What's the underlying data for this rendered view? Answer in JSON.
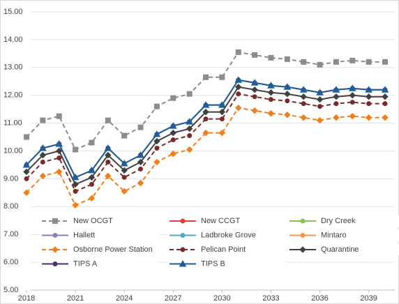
{
  "chart_data": {
    "type": "line",
    "x": [
      2018,
      2019,
      2020,
      2021,
      2022,
      2023,
      2024,
      2025,
      2026,
      2027,
      2028,
      2029,
      2030,
      2031,
      2032,
      2033,
      2034,
      2035,
      2036,
      2037,
      2038,
      2039,
      2040
    ],
    "xlim": [
      2018,
      2040
    ],
    "xticks": [
      2018,
      2021,
      2024,
      2027,
      2030,
      2033,
      2036,
      2039
    ],
    "ylim": [
      5,
      15
    ],
    "yticks": [
      {
        "value": 5,
        "label": "5.00"
      },
      {
        "value": 6,
        "label": "6.00"
      },
      {
        "value": 7,
        "label": "7.00"
      },
      {
        "value": 8,
        "label": "8.00"
      },
      {
        "value": 9,
        "label": "9.00"
      },
      {
        "value": 10,
        "label": "10.00"
      },
      {
        "value": 11,
        "label": "11.00"
      },
      {
        "value": 12,
        "label": "12.00"
      },
      {
        "value": 13,
        "label": "13.00"
      },
      {
        "value": 14,
        "label": "14.00"
      },
      {
        "value": 15,
        "label": "15.00"
      }
    ],
    "grid": true,
    "legend": "bottom",
    "series": [
      {
        "name": "New OCGT",
        "color": "#8c8c8c",
        "dash": true,
        "marker": "square",
        "values": [
          10.5,
          11.1,
          11.25,
          10.05,
          10.3,
          11.1,
          10.55,
          10.85,
          11.6,
          11.9,
          12.05,
          12.65,
          12.65,
          13.55,
          13.45,
          13.35,
          13.3,
          13.2,
          13.1,
          13.2,
          13.25,
          13.2,
          13.2
        ]
      },
      {
        "name": "New CCGT",
        "color": "#e0403a",
        "dash": false,
        "marker": "circle",
        "values": [
          null,
          null,
          null,
          null,
          null,
          null,
          null,
          null,
          null,
          null,
          null,
          null,
          null,
          null,
          null,
          null,
          null,
          null,
          null,
          null,
          null,
          null,
          null
        ]
      },
      {
        "name": "Dry Creek",
        "color": "#8cc152",
        "dash": false,
        "marker": "circle",
        "values": [
          null,
          null,
          null,
          null,
          null,
          null,
          null,
          null,
          null,
          null,
          null,
          null,
          null,
          null,
          null,
          null,
          null,
          null,
          null,
          null,
          null,
          null,
          null
        ]
      },
      {
        "name": "Hallett",
        "color": "#8e7cc3",
        "dash": false,
        "marker": "circle",
        "values": [
          null,
          null,
          null,
          null,
          null,
          null,
          null,
          null,
          null,
          null,
          null,
          null,
          null,
          null,
          null,
          null,
          null,
          null,
          null,
          null,
          null,
          null,
          null
        ]
      },
      {
        "name": "Ladbroke Grove",
        "color": "#4bacc6",
        "dash": false,
        "marker": "circle",
        "values": [
          null,
          null,
          null,
          null,
          null,
          null,
          null,
          null,
          null,
          null,
          null,
          null,
          null,
          null,
          null,
          null,
          null,
          null,
          null,
          null,
          null,
          null,
          null
        ]
      },
      {
        "name": "Mintaro",
        "color": "#f79646",
        "dash": false,
        "marker": "circle",
        "values": [
          null,
          null,
          null,
          null,
          null,
          null,
          null,
          null,
          null,
          null,
          null,
          null,
          null,
          null,
          null,
          null,
          null,
          null,
          null,
          null,
          null,
          null,
          null
        ]
      },
      {
        "name": "Osborne Power Station",
        "color": "#f07f1c",
        "dash": true,
        "marker": "diamond",
        "values": [
          8.5,
          9.1,
          9.25,
          8.05,
          8.3,
          9.1,
          8.55,
          8.85,
          9.6,
          9.9,
          10.05,
          10.65,
          10.65,
          11.55,
          11.45,
          11.35,
          11.3,
          11.2,
          11.1,
          11.2,
          11.25,
          11.2,
          11.2
        ]
      },
      {
        "name": "Pelican Point",
        "color": "#7b2a2a",
        "dash": true,
        "marker": "circle",
        "values": [
          9,
          9.6,
          9.75,
          8.55,
          8.8,
          9.6,
          9.05,
          9.35,
          10.1,
          10.4,
          10.55,
          11.15,
          11.15,
          12.05,
          11.95,
          11.85,
          11.8,
          11.7,
          11.6,
          11.7,
          11.75,
          11.7,
          11.7
        ]
      },
      {
        "name": "Quarantine",
        "color": "#404040",
        "dash": false,
        "marker": "diamond",
        "values": [
          9.25,
          9.85,
          10,
          8.8,
          9.05,
          9.85,
          9.3,
          9.6,
          10.35,
          10.65,
          10.8,
          11.4,
          11.4,
          12.3,
          12.2,
          12.1,
          12.05,
          11.95,
          11.85,
          11.95,
          12,
          11.95,
          11.95
        ]
      },
      {
        "name": "TIPS A",
        "color": "#4b2e6e",
        "dash": false,
        "marker": "circle",
        "values": [
          9.5,
          10.1,
          10.25,
          9.05,
          9.3,
          10.1,
          9.55,
          9.85,
          10.6,
          10.9,
          11.05,
          11.65,
          11.65,
          12.55,
          12.45,
          12.35,
          12.3,
          12.2,
          12.1,
          12.2,
          12.25,
          12.2,
          12.2
        ]
      },
      {
        "name": "TIPS B",
        "color": "#1f5f99",
        "dash": false,
        "marker": "triangle",
        "values": [
          9.5,
          10.1,
          10.25,
          9.05,
          9.3,
          10.1,
          9.55,
          9.85,
          10.6,
          10.9,
          11.05,
          11.65,
          11.65,
          12.55,
          12.45,
          12.35,
          12.3,
          12.2,
          12.1,
          12.2,
          12.25,
          12.2,
          12.2
        ]
      }
    ]
  }
}
